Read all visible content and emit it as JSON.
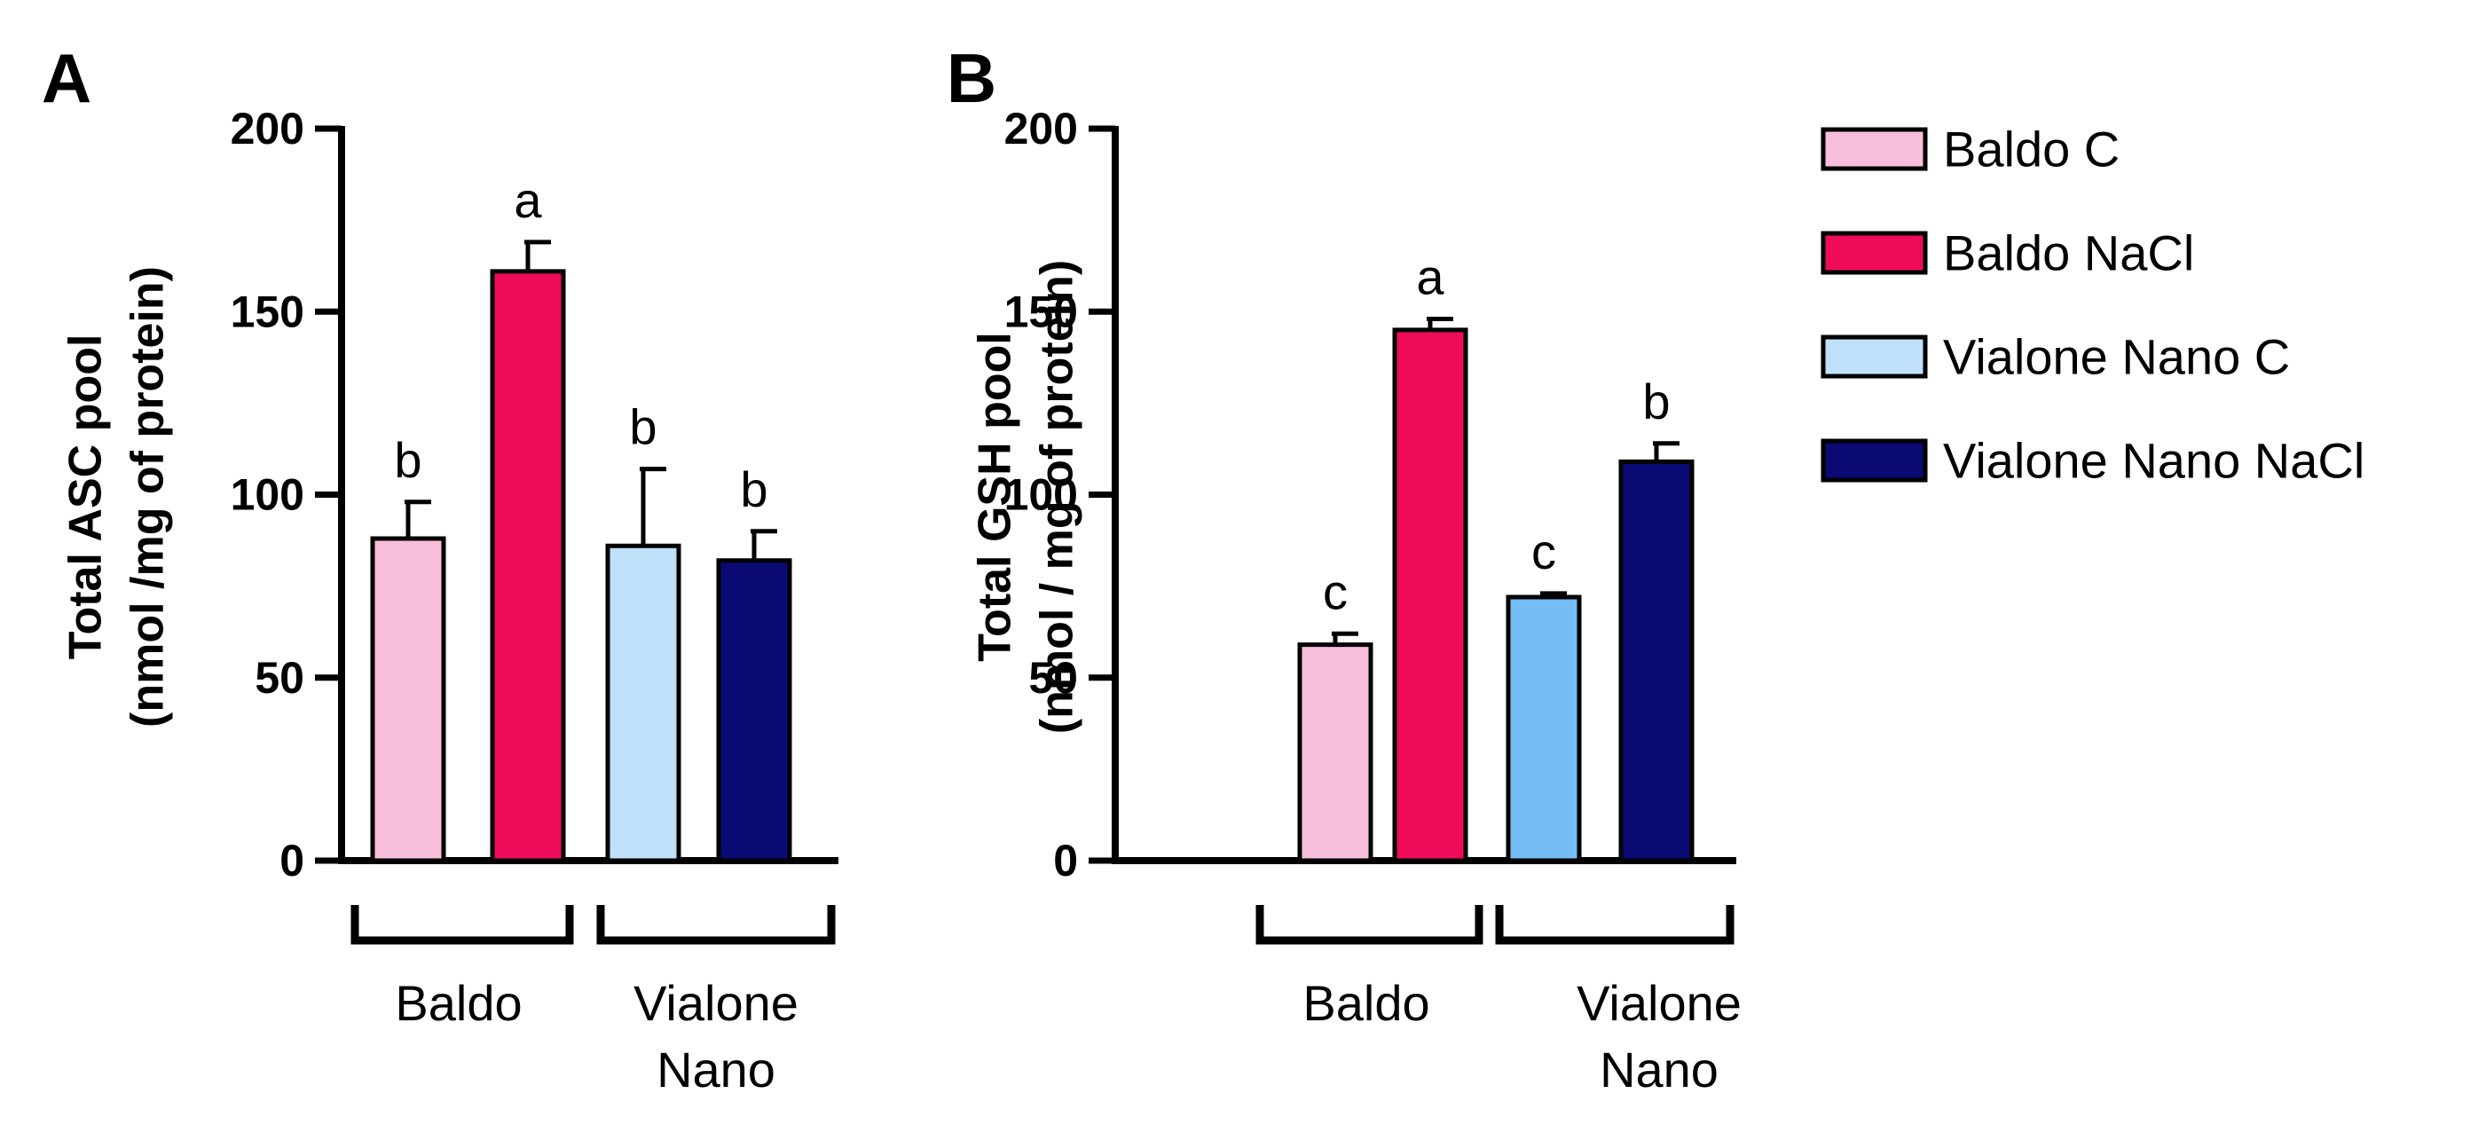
{
  "legend": [
    {
      "label": "Baldo C",
      "color": "#F9BEDB"
    },
    {
      "label": "Baldo NaCl",
      "color": "#EE0C5A"
    },
    {
      "label": "Vialone Nano C",
      "color": "#BFE0F8"
    },
    {
      "label": "Vialone Nano NaCl",
      "color": "#0A0A74"
    }
  ],
  "chart_data": [
    {
      "type": "bar",
      "panel": "A",
      "ylabel_line1": "Total ASC pool",
      "ylabel_line2": "(nmol /mg of protein)",
      "ylim": [
        0,
        200
      ],
      "yticks": [
        0,
        50,
        100,
        150,
        200
      ],
      "groups": [
        {
          "label_lines": [
            "Baldo"
          ],
          "bars": [
            0,
            1
          ]
        },
        {
          "label_lines": [
            "Vialone",
            "Nano"
          ],
          "bars": [
            2,
            3
          ]
        }
      ],
      "bars": [
        {
          "series": "Baldo C",
          "value": 88,
          "error": 10,
          "letter": "b",
          "color": "#F9BEDB"
        },
        {
          "series": "Baldo NaCl",
          "value": 161,
          "error": 8,
          "letter": "a",
          "color": "#EE0C5A"
        },
        {
          "series": "Vialone Nano C",
          "value": 86,
          "error": 21,
          "letter": "b",
          "color": "#BFE0F8"
        },
        {
          "series": "Vialone Nano NaCl",
          "value": 82,
          "error": 8,
          "letter": "b",
          "color": "#0A0A74"
        }
      ]
    },
    {
      "type": "bar",
      "panel": "B",
      "ylabel_line1": "Total GSH pool",
      "ylabel_line2": "(nmol / mg of protein)",
      "ylim": [
        0,
        200
      ],
      "yticks": [
        0,
        50,
        100,
        150,
        200
      ],
      "groups": [
        {
          "label_lines": [
            "Baldo"
          ],
          "bars": [
            0,
            1
          ]
        },
        {
          "label_lines": [
            "Vialone",
            "Nano"
          ],
          "bars": [
            2,
            3
          ]
        }
      ],
      "bars": [
        {
          "series": "Baldo C",
          "value": 59,
          "error": 3,
          "letter": "c",
          "color": "#F9BEDB"
        },
        {
          "series": "Baldo NaCl",
          "value": 145,
          "error": 3,
          "letter": "a",
          "color": "#EE0C5A"
        },
        {
          "series": "Vialone Nano C",
          "value": 72,
          "error": 1,
          "letter": "c",
          "color": "#74BDF5"
        },
        {
          "series": "Vialone Nano NaCl",
          "value": 109,
          "error": 5,
          "letter": "b",
          "color": "#0A0A74"
        }
      ]
    }
  ]
}
